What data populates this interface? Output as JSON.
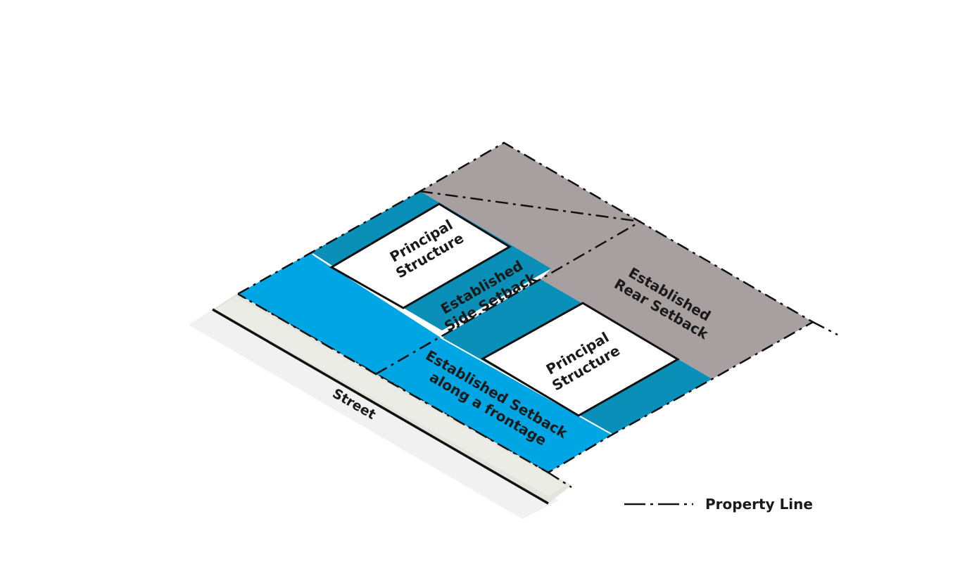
{
  "labels": {
    "principal_structure_1": [
      "Principal",
      "Structure"
    ],
    "principal_structure_2": [
      "Principal",
      "Structure"
    ],
    "side_setback": [
      "Established",
      "Side Setback"
    ],
    "rear_setback": [
      "Established",
      "Rear Setback"
    ],
    "frontage_setback": [
      "Established Setback",
      "along a frontage"
    ],
    "street": "Street"
  },
  "legend": {
    "property_line": "Property Line"
  },
  "colors": {
    "bright_blue": "#00a6e4",
    "dark_blue": "#0a8fb8",
    "taupe": "#a89fa1",
    "structure": "#ffffff",
    "street_shadow": "#f0f0f0",
    "sidewalk": "#e2e2dc",
    "line": "#111111"
  }
}
